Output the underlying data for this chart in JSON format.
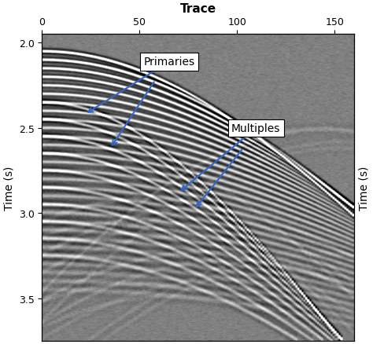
{
  "title": "Trace",
  "xlabel_left": "Time (s)",
  "xlabel_right": "Time (s)",
  "xlim": [
    0,
    160
  ],
  "ylim": [
    3.75,
    1.95
  ],
  "xticks": [
    0,
    50,
    100,
    150
  ],
  "yticks": [
    2.0,
    2.5,
    3.0,
    3.5
  ],
  "bg_color_val": 110,
  "n_traces": 160,
  "n_samples": 360,
  "t_start": 1.95,
  "t_end": 3.75,
  "primaries_label": "Primaries",
  "multiples_label": "Multiples",
  "annotation_box_facecolor": "white",
  "annotation_box_edgecolor": "black",
  "figsize": [
    4.74,
    4.39
  ],
  "dpi": 100,
  "primaries": [
    {
      "t0": 2.05,
      "v": 1800,
      "amp": 1.4,
      "f": 28
    },
    {
      "t0": 2.1,
      "v": 1900,
      "amp": 1.3,
      "f": 28
    },
    {
      "t0": 2.15,
      "v": 1950,
      "amp": 1.2,
      "f": 28
    },
    {
      "t0": 2.2,
      "v": 2000,
      "amp": 1.1,
      "f": 28
    },
    {
      "t0": 2.25,
      "v": 2050,
      "amp": 1.0,
      "f": 28
    },
    {
      "t0": 2.3,
      "v": 2100,
      "amp": 0.9,
      "f": 26
    },
    {
      "t0": 2.35,
      "v": 2150,
      "amp": 0.85,
      "f": 26
    },
    {
      "t0": 2.4,
      "v": 2200,
      "amp": 0.8,
      "f": 26
    },
    {
      "t0": 2.45,
      "v": 2250,
      "amp": 0.75,
      "f": 25
    },
    {
      "t0": 2.5,
      "v": 2300,
      "amp": 0.7,
      "f": 25
    },
    {
      "t0": 2.55,
      "v": 2350,
      "amp": 0.65,
      "f": 24
    },
    {
      "t0": 2.6,
      "v": 2400,
      "amp": 0.6,
      "f": 24
    },
    {
      "t0": 2.65,
      "v": 2450,
      "amp": 0.55,
      "f": 23
    },
    {
      "t0": 2.7,
      "v": 2500,
      "amp": 0.5,
      "f": 23
    },
    {
      "t0": 2.75,
      "v": 2550,
      "amp": 0.45,
      "f": 22
    },
    {
      "t0": 2.8,
      "v": 2600,
      "amp": 0.4,
      "f": 22
    },
    {
      "t0": 2.85,
      "v": 2650,
      "amp": 0.38,
      "f": 21
    },
    {
      "t0": 2.9,
      "v": 2700,
      "amp": 0.35,
      "f": 21
    },
    {
      "t0": 2.95,
      "v": 2750,
      "amp": 0.33,
      "f": 20
    },
    {
      "t0": 3.0,
      "v": 2800,
      "amp": 0.3,
      "f": 20
    },
    {
      "t0": 3.05,
      "v": 2850,
      "amp": 0.28,
      "f": 19
    },
    {
      "t0": 3.1,
      "v": 2900,
      "amp": 0.26,
      "f": 19
    },
    {
      "t0": 3.15,
      "v": 2950,
      "amp": 0.24,
      "f": 18
    },
    {
      "t0": 3.2,
      "v": 3000,
      "amp": 0.22,
      "f": 18
    },
    {
      "t0": 3.25,
      "v": 3050,
      "amp": 0.2,
      "f": 17
    },
    {
      "t0": 3.3,
      "v": 3100,
      "amp": 0.18,
      "f": 17
    },
    {
      "t0": 3.35,
      "v": 3150,
      "amp": 0.17,
      "f": 16
    },
    {
      "t0": 3.4,
      "v": 3200,
      "amp": 0.16,
      "f": 16
    },
    {
      "t0": 3.45,
      "v": 3250,
      "amp": 0.15,
      "f": 15
    }
  ],
  "multiples": [
    {
      "t0": 2.35,
      "v": 1300,
      "amp": 0.9,
      "f": 26
    },
    {
      "t0": 2.45,
      "v": 1350,
      "amp": 0.8,
      "f": 25
    },
    {
      "t0": 2.55,
      "v": 1400,
      "amp": 0.75,
      "f": 24
    },
    {
      "t0": 2.65,
      "v": 1450,
      "amp": 0.7,
      "f": 24
    },
    {
      "t0": 2.75,
      "v": 1500,
      "amp": 0.65,
      "f": 23
    },
    {
      "t0": 2.85,
      "v": 1550,
      "amp": 0.6,
      "f": 22
    },
    {
      "t0": 2.95,
      "v": 1600,
      "amp": 0.55,
      "f": 21
    },
    {
      "t0": 3.05,
      "v": 1650,
      "amp": 0.5,
      "f": 20
    },
    {
      "t0": 3.15,
      "v": 1700,
      "amp": 0.45,
      "f": 19
    },
    {
      "t0": 3.25,
      "v": 1750,
      "amp": 0.4,
      "f": 18
    }
  ]
}
